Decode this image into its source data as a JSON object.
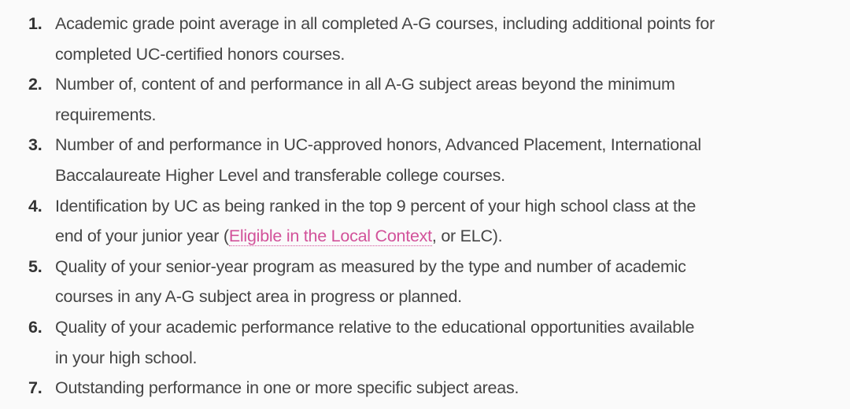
{
  "colors": {
    "text": "#454545",
    "link": "#d2529a",
    "background": "#fafafa"
  },
  "items": [
    {
      "num": "1.",
      "lines": [
        "Academic grade point average in all completed A-G courses, including additional points for",
        "completed UC-certified honors courses."
      ]
    },
    {
      "num": "2.",
      "lines": [
        "Number of, content of and performance in all A-G subject areas beyond the minimum",
        "requirements."
      ]
    },
    {
      "num": "3.",
      "lines": [
        "Number of and performance in UC-approved honors, Advanced Placement, International",
        "Baccalaureate Higher Level and transferable college courses."
      ]
    },
    {
      "num": "4.",
      "lines": [
        "Identification by UC as being ranked in the top 9 percent of your high school class at the"
      ],
      "line2_pre": "end of your junior year (",
      "link": "Eligible in the Local Context",
      "line2_post": ", or ELC)."
    },
    {
      "num": "5.",
      "lines": [
        "Quality of your senior-year program as measured by the type and number of academic",
        "courses in any A-G subject area in progress or planned."
      ]
    },
    {
      "num": "6.",
      "lines": [
        "Quality of your academic performance relative to the educational opportunities available",
        "in your high school."
      ]
    },
    {
      "num": "7.",
      "lines": [
        "Outstanding performance in one or more specific subject areas."
      ]
    }
  ]
}
